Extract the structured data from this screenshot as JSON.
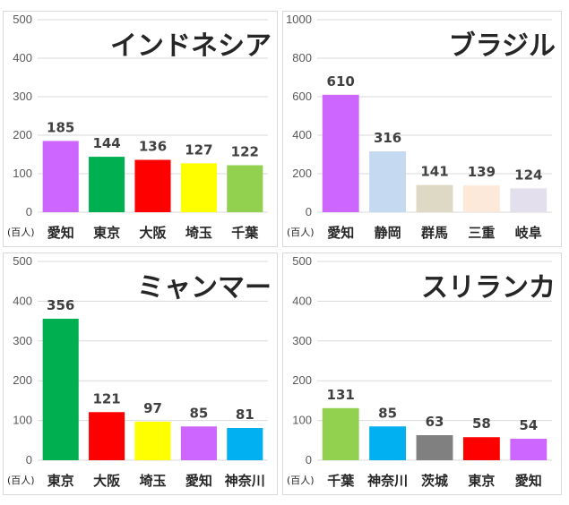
{
  "unit_label": "(百人)",
  "chart_data": [
    {
      "type": "bar",
      "title": "インドネシア",
      "categories": [
        "愛知",
        "東京",
        "大阪",
        "埼玉",
        "千葉"
      ],
      "values": [
        185,
        144,
        136,
        127,
        122
      ],
      "colors": [
        "#cc66ff",
        "#00b050",
        "#ff0000",
        "#ffff00",
        "#92d050"
      ],
      "ylim": [
        0,
        500
      ],
      "yticks": [
        0,
        100,
        200,
        300,
        400,
        500
      ],
      "grid": true
    },
    {
      "type": "bar",
      "title": "ブラジル",
      "categories": [
        "愛知",
        "静岡",
        "群馬",
        "三重",
        "岐阜"
      ],
      "values": [
        610,
        316,
        141,
        139,
        124
      ],
      "colors": [
        "#cc66ff",
        "#c5d9f1",
        "#ddd9c4",
        "#fde9d9",
        "#e4dfec"
      ],
      "ylim": [
        0,
        1000
      ],
      "yticks": [
        0,
        200,
        400,
        600,
        800,
        1000
      ],
      "grid": true
    },
    {
      "type": "bar",
      "title": "ミャンマー",
      "categories": [
        "東京",
        "大阪",
        "埼玉",
        "愛知",
        "神奈川"
      ],
      "values": [
        356,
        121,
        97,
        85,
        81
      ],
      "colors": [
        "#00b050",
        "#ff0000",
        "#ffff00",
        "#cc66ff",
        "#00b0f0"
      ],
      "ylim": [
        0,
        500
      ],
      "yticks": [
        0,
        100,
        200,
        300,
        400,
        500
      ],
      "grid": true
    },
    {
      "type": "bar",
      "title": "スリランカ",
      "categories": [
        "千葉",
        "神奈川",
        "茨城",
        "東京",
        "愛知"
      ],
      "values": [
        131,
        85,
        63,
        58,
        54
      ],
      "colors": [
        "#92d050",
        "#00b0f0",
        "#808080",
        "#ff0000",
        "#cc66ff"
      ],
      "ylim": [
        0,
        500
      ],
      "yticks": [
        0,
        100,
        200,
        300,
        400,
        500
      ],
      "grid": true
    }
  ]
}
